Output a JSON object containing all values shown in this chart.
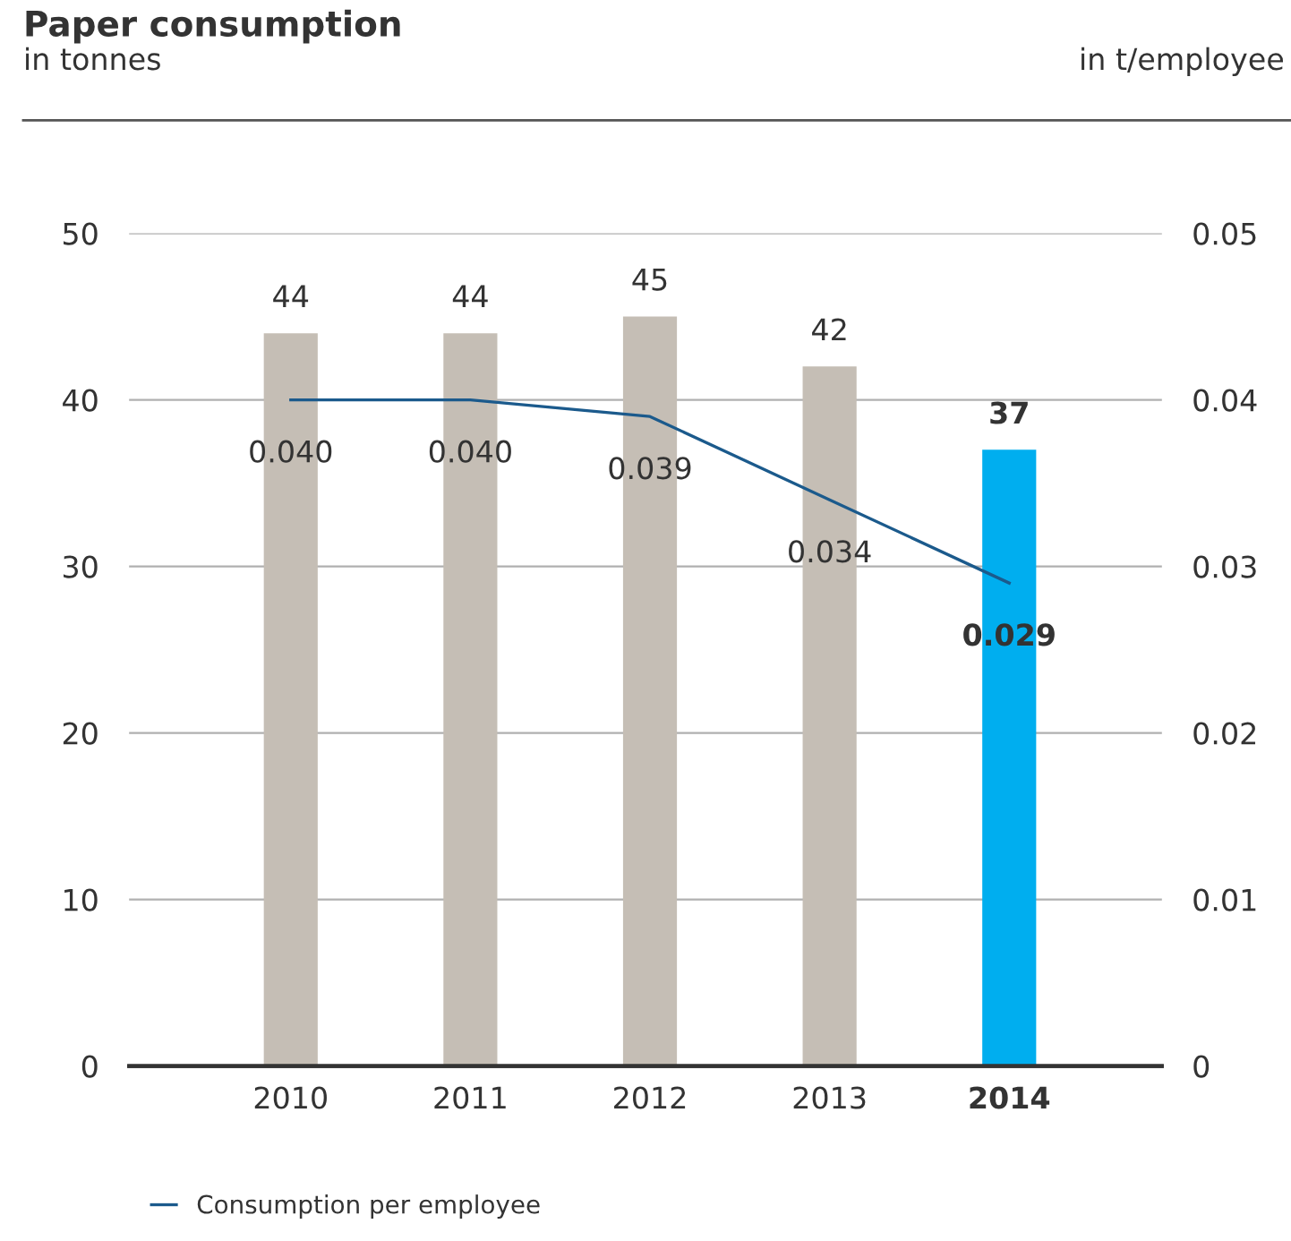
{
  "chart_data": {
    "type": "bar",
    "title": "Paper consumption",
    "annotations": [
      "in tonnes",
      "in t/employee"
    ],
    "categories": [
      "2010",
      "2011",
      "2012",
      "2013",
      "2014"
    ],
    "series": [
      {
        "colors": [
          "#c5beb5",
          "#c5beb5",
          "#c5beb5",
          "#c5beb5",
          "#00aeef"
        ],
        "values": [
          44,
          44,
          45,
          42,
          37
        ]
      },
      {
        "type": "line",
        "name": "Consumption per employee",
        "color": "#1b5a8c",
        "axis": "y2",
        "values": [
          0.04,
          0.04,
          0.039,
          0.034,
          0.029
        ],
        "value_labels": [
          "0.040",
          "0.040",
          "0.039",
          "0.034",
          "0.029"
        ]
      }
    ],
    "ylim": [
      0,
      50
    ],
    "yticks": [
      0,
      10,
      20,
      30,
      40,
      50
    ],
    "y2lim": [
      0,
      0.05
    ],
    "y2ticks": [
      0,
      0.01,
      0.02,
      0.03,
      0.04,
      0.05
    ],
    "data_labels": true,
    "grid": "y",
    "legend": "bottom",
    "marker": "none",
    "line_style": "solid"
  }
}
